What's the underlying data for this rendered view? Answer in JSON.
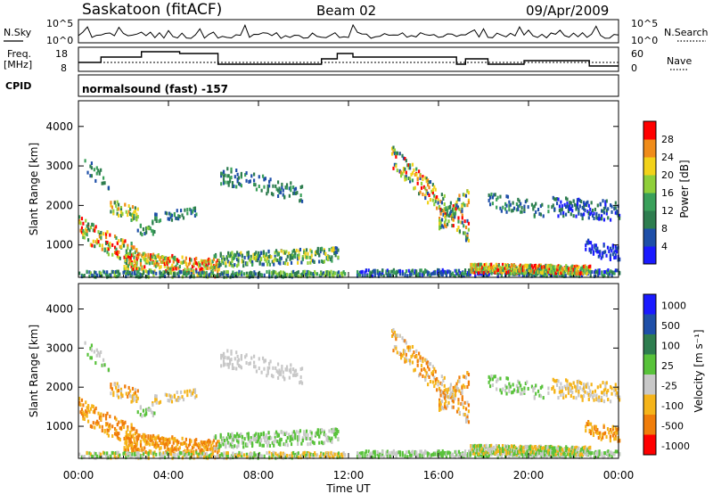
{
  "header": {
    "station": "Saskatoon (fitACF)",
    "beam": "Beam 02",
    "date": "09/Apr/2009"
  },
  "panels": {
    "nsky_label": "N.Sky",
    "nsky_ticks": [
      "10^5",
      "10^0"
    ],
    "nsearch_label": "N.Search",
    "nsearch_ticks": [
      "10^5",
      "10^0"
    ],
    "freq_label_1": "Freq.",
    "freq_label_2": "[MHz]",
    "freq_ticks": [
      "18",
      "8"
    ],
    "nave_label": "Nave",
    "nave_ticks": [
      "60",
      "0"
    ],
    "cpid_label": "CPID",
    "cpid_text": "normalsound (fast) -157"
  },
  "colors": {
    "power_scale": [
      "#1a1aff",
      "#1e4fa8",
      "#2e7d4f",
      "#3aa05a",
      "#8fcf3a",
      "#f2d21a",
      "#f08c1a",
      "#ff0000"
    ],
    "velocity_scale": [
      "#1a1aff",
      "#1e4fa8",
      "#2e7d4f",
      "#58c23a",
      "#c8c8c8",
      "#f5b41a",
      "#f07d0a",
      "#ff0000"
    ],
    "ground_scatter": "#c0c0c0"
  },
  "chart_data": [
    {
      "type": "heatmap",
      "title": "Power",
      "xlabel": "Time UT",
      "ylabel": "Slant Range [km]",
      "x_ticks": [
        "00:00",
        "04:00",
        "08:00",
        "12:00",
        "16:00",
        "20:00",
        "00:00"
      ],
      "x_range_hours": [
        0,
        24
      ],
      "y_ticks": [
        "1000",
        "2000",
        "3000",
        "4000"
      ],
      "ylim": [
        180,
        4650
      ],
      "colorbar_label": "Power [dB]",
      "colorbar_ticks": [
        "4",
        "8",
        "12",
        "16",
        "20",
        "24",
        "28"
      ],
      "colorbar_range": [
        0,
        32
      ]
    },
    {
      "type": "heatmap",
      "title": "Velocity",
      "xlabel": "Time UT",
      "ylabel": "Slant Range [km]",
      "x_ticks": [
        "00:00",
        "04:00",
        "08:00",
        "12:00",
        "16:00",
        "20:00",
        "00:00"
      ],
      "x_range_hours": [
        0,
        24
      ],
      "y_ticks": [
        "1000",
        "2000",
        "3000",
        "4000"
      ],
      "ylim": [
        180,
        4650
      ],
      "colorbar_label": "Velocity [m s⁻¹]",
      "colorbar_ticks": [
        "1000",
        "500",
        "100",
        "25",
        "-25",
        "-100",
        "-500",
        "-1000"
      ]
    }
  ],
  "axes": {
    "x_title": "Time UT"
  }
}
